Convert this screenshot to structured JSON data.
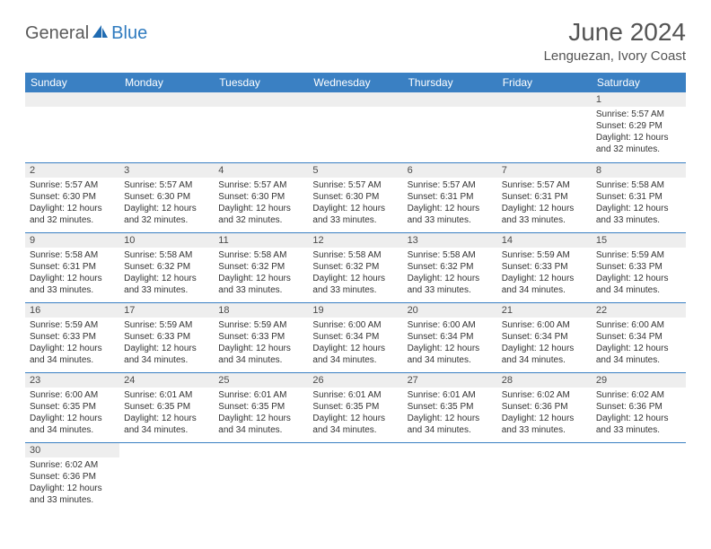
{
  "brand": {
    "general": "General",
    "blue": "Blue"
  },
  "title": "June 2024",
  "location": "Lenguezan, Ivory Coast",
  "colors": {
    "header_bg": "#3a80c3",
    "header_fg": "#ffffff",
    "daynum_bg": "#eeeeee",
    "rule": "#3a80c3",
    "title_fg": "#545454",
    "logo_gray": "#5a5a5a",
    "logo_blue": "#2f7bbf"
  },
  "weekdays": [
    "Sunday",
    "Monday",
    "Tuesday",
    "Wednesday",
    "Thursday",
    "Friday",
    "Saturday"
  ],
  "weeks": [
    [
      null,
      null,
      null,
      null,
      null,
      null,
      {
        "n": "1",
        "sr": "Sunrise: 5:57 AM",
        "ss": "Sunset: 6:29 PM",
        "dl": "Daylight: 12 hours and 32 minutes."
      }
    ],
    [
      {
        "n": "2",
        "sr": "Sunrise: 5:57 AM",
        "ss": "Sunset: 6:30 PM",
        "dl": "Daylight: 12 hours and 32 minutes."
      },
      {
        "n": "3",
        "sr": "Sunrise: 5:57 AM",
        "ss": "Sunset: 6:30 PM",
        "dl": "Daylight: 12 hours and 32 minutes."
      },
      {
        "n": "4",
        "sr": "Sunrise: 5:57 AM",
        "ss": "Sunset: 6:30 PM",
        "dl": "Daylight: 12 hours and 32 minutes."
      },
      {
        "n": "5",
        "sr": "Sunrise: 5:57 AM",
        "ss": "Sunset: 6:30 PM",
        "dl": "Daylight: 12 hours and 33 minutes."
      },
      {
        "n": "6",
        "sr": "Sunrise: 5:57 AM",
        "ss": "Sunset: 6:31 PM",
        "dl": "Daylight: 12 hours and 33 minutes."
      },
      {
        "n": "7",
        "sr": "Sunrise: 5:57 AM",
        "ss": "Sunset: 6:31 PM",
        "dl": "Daylight: 12 hours and 33 minutes."
      },
      {
        "n": "8",
        "sr": "Sunrise: 5:58 AM",
        "ss": "Sunset: 6:31 PM",
        "dl": "Daylight: 12 hours and 33 minutes."
      }
    ],
    [
      {
        "n": "9",
        "sr": "Sunrise: 5:58 AM",
        "ss": "Sunset: 6:31 PM",
        "dl": "Daylight: 12 hours and 33 minutes."
      },
      {
        "n": "10",
        "sr": "Sunrise: 5:58 AM",
        "ss": "Sunset: 6:32 PM",
        "dl": "Daylight: 12 hours and 33 minutes."
      },
      {
        "n": "11",
        "sr": "Sunrise: 5:58 AM",
        "ss": "Sunset: 6:32 PM",
        "dl": "Daylight: 12 hours and 33 minutes."
      },
      {
        "n": "12",
        "sr": "Sunrise: 5:58 AM",
        "ss": "Sunset: 6:32 PM",
        "dl": "Daylight: 12 hours and 33 minutes."
      },
      {
        "n": "13",
        "sr": "Sunrise: 5:58 AM",
        "ss": "Sunset: 6:32 PM",
        "dl": "Daylight: 12 hours and 33 minutes."
      },
      {
        "n": "14",
        "sr": "Sunrise: 5:59 AM",
        "ss": "Sunset: 6:33 PM",
        "dl": "Daylight: 12 hours and 34 minutes."
      },
      {
        "n": "15",
        "sr": "Sunrise: 5:59 AM",
        "ss": "Sunset: 6:33 PM",
        "dl": "Daylight: 12 hours and 34 minutes."
      }
    ],
    [
      {
        "n": "16",
        "sr": "Sunrise: 5:59 AM",
        "ss": "Sunset: 6:33 PM",
        "dl": "Daylight: 12 hours and 34 minutes."
      },
      {
        "n": "17",
        "sr": "Sunrise: 5:59 AM",
        "ss": "Sunset: 6:33 PM",
        "dl": "Daylight: 12 hours and 34 minutes."
      },
      {
        "n": "18",
        "sr": "Sunrise: 5:59 AM",
        "ss": "Sunset: 6:33 PM",
        "dl": "Daylight: 12 hours and 34 minutes."
      },
      {
        "n": "19",
        "sr": "Sunrise: 6:00 AM",
        "ss": "Sunset: 6:34 PM",
        "dl": "Daylight: 12 hours and 34 minutes."
      },
      {
        "n": "20",
        "sr": "Sunrise: 6:00 AM",
        "ss": "Sunset: 6:34 PM",
        "dl": "Daylight: 12 hours and 34 minutes."
      },
      {
        "n": "21",
        "sr": "Sunrise: 6:00 AM",
        "ss": "Sunset: 6:34 PM",
        "dl": "Daylight: 12 hours and 34 minutes."
      },
      {
        "n": "22",
        "sr": "Sunrise: 6:00 AM",
        "ss": "Sunset: 6:34 PM",
        "dl": "Daylight: 12 hours and 34 minutes."
      }
    ],
    [
      {
        "n": "23",
        "sr": "Sunrise: 6:00 AM",
        "ss": "Sunset: 6:35 PM",
        "dl": "Daylight: 12 hours and 34 minutes."
      },
      {
        "n": "24",
        "sr": "Sunrise: 6:01 AM",
        "ss": "Sunset: 6:35 PM",
        "dl": "Daylight: 12 hours and 34 minutes."
      },
      {
        "n": "25",
        "sr": "Sunrise: 6:01 AM",
        "ss": "Sunset: 6:35 PM",
        "dl": "Daylight: 12 hours and 34 minutes."
      },
      {
        "n": "26",
        "sr": "Sunrise: 6:01 AM",
        "ss": "Sunset: 6:35 PM",
        "dl": "Daylight: 12 hours and 34 minutes."
      },
      {
        "n": "27",
        "sr": "Sunrise: 6:01 AM",
        "ss": "Sunset: 6:35 PM",
        "dl": "Daylight: 12 hours and 34 minutes."
      },
      {
        "n": "28",
        "sr": "Sunrise: 6:02 AM",
        "ss": "Sunset: 6:36 PM",
        "dl": "Daylight: 12 hours and 33 minutes."
      },
      {
        "n": "29",
        "sr": "Sunrise: 6:02 AM",
        "ss": "Sunset: 6:36 PM",
        "dl": "Daylight: 12 hours and 33 minutes."
      }
    ],
    [
      {
        "n": "30",
        "sr": "Sunrise: 6:02 AM",
        "ss": "Sunset: 6:36 PM",
        "dl": "Daylight: 12 hours and 33 minutes."
      },
      null,
      null,
      null,
      null,
      null,
      null
    ]
  ]
}
